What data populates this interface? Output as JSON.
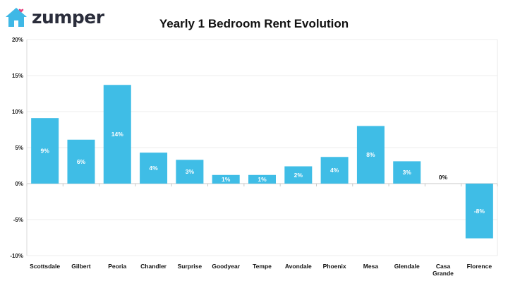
{
  "brand": {
    "name": "zumper",
    "house_color": "#3fb8e6",
    "heart_color": "#e8447f"
  },
  "chart_data": {
    "type": "bar",
    "title": "Yearly 1 Bedroom Rent Evolution",
    "categories": [
      "Scottsdale",
      "Gilbert",
      "Peoria",
      "Chandler",
      "Surprise",
      "Goodyear",
      "Tempe",
      "Avondale",
      "Phoenix",
      "Mesa",
      "Glendale",
      "Casa Grande",
      "Florence"
    ],
    "category_lines": [
      [
        "Scottsdale"
      ],
      [
        "Gilbert"
      ],
      [
        "Peoria"
      ],
      [
        "Chandler"
      ],
      [
        "Surprise"
      ],
      [
        "Goodyear"
      ],
      [
        "Tempe"
      ],
      [
        "Avondale"
      ],
      [
        "Phoenix"
      ],
      [
        "Mesa"
      ],
      [
        "Glendale"
      ],
      [
        "Casa",
        "Grande"
      ],
      [
        "Florence"
      ]
    ],
    "values": [
      9.1,
      6.1,
      13.7,
      4.3,
      3.3,
      1.2,
      1.2,
      2.4,
      3.7,
      8.0,
      3.1,
      0.0,
      -7.6
    ],
    "data_labels": [
      "9%",
      "6%",
      "14%",
      "4%",
      "3%",
      "1%",
      "1%",
      "2%",
      "4%",
      "8%",
      "3%",
      "0%",
      "-8%"
    ],
    "y_ticks": [
      20,
      15,
      10,
      5,
      0,
      -5,
      -10
    ],
    "y_tick_labels": [
      "20%",
      "15%",
      "10%",
      "5%",
      "0%",
      "-5%",
      "-10%"
    ],
    "ylim": [
      -10,
      20
    ],
    "xlabel": "",
    "ylabel": "",
    "grid": true,
    "legend": "none",
    "bar_color": "#3fbde6"
  }
}
